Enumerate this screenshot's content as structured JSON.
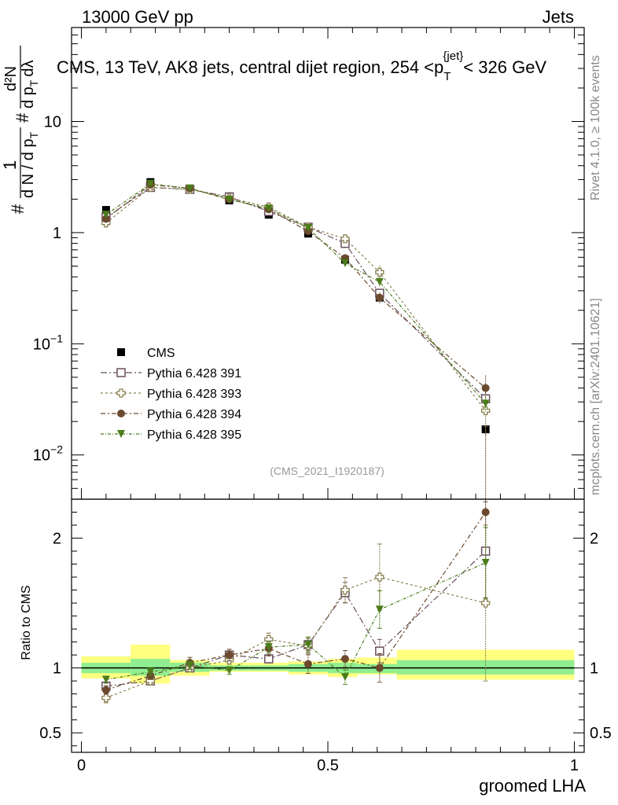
{
  "header": {
    "left": "13000 GeV pp",
    "right": "Jets"
  },
  "side_labels": {
    "rivet": "Rivet 4.1.0, ≥ 100k events",
    "mcplots": "mcplots.cern.ch [arXiv:2401.10621]"
  },
  "chart_data": {
    "type": "line",
    "title": "CMS, 13 TeV, AK8 jets, central dijet region, 254 <p_T^{jet}< 326 GeV",
    "title_parts": {
      "main": "CMS, 13 TeV, AK8 jets, central dijet region, 254 <p",
      "sub": "T",
      "sup": "{jet}",
      "tail": "< 326 GeV"
    },
    "watermark": "(CMS_2021_I1920187)",
    "xlabel": "groomed LHA",
    "ylabel": "1/dN/dp_T  d²N/dp_T dλ",
    "ylabel_parts": {
      "num": "1",
      "den": "d N / d p",
      "denSub": "T",
      "right": "d²N",
      "rightDen": "d p",
      "rightDenSub": "T",
      "rightLambda": "dλ",
      "hash": "#"
    },
    "ratio_ylabel": "Ratio to CMS",
    "xlim": [
      -0.02,
      1.02
    ],
    "ylim": [
      0.004,
      70
    ],
    "yscale": "log",
    "ratio_ylim": [
      0.35,
      2.3
    ],
    "x_ticks": [
      {
        "v": 0,
        "label": "0"
      },
      {
        "v": 0.5,
        "label": "0.5"
      },
      {
        "v": 1,
        "label": "1"
      }
    ],
    "y_ticks": [
      {
        "v": 0.01,
        "base": "10",
        "exp": "−2"
      },
      {
        "v": 0.1,
        "base": "10",
        "exp": "−1"
      },
      {
        "v": 1,
        "base": "1",
        "exp": ""
      },
      {
        "v": 10,
        "base": "10",
        "exp": ""
      }
    ],
    "ratio_ticks": [
      {
        "v": 0.5,
        "label": "0.5"
      },
      {
        "v": 1,
        "label": "1"
      },
      {
        "v": 2,
        "label": "2"
      }
    ],
    "bins": [
      {
        "lo": 0.0,
        "hi": 0.1,
        "x": 0.05
      },
      {
        "lo": 0.1,
        "hi": 0.18,
        "x": 0.14
      },
      {
        "lo": 0.18,
        "hi": 0.26,
        "x": 0.22
      },
      {
        "lo": 0.26,
        "hi": 0.34,
        "x": 0.3
      },
      {
        "lo": 0.34,
        "hi": 0.42,
        "x": 0.38
      },
      {
        "lo": 0.42,
        "hi": 0.5,
        "x": 0.46
      },
      {
        "lo": 0.5,
        "hi": 0.56,
        "x": 0.535
      },
      {
        "lo": 0.56,
        "hi": 0.64,
        "x": 0.605
      },
      {
        "lo": 0.64,
        "hi": 1.0,
        "x": 0.82
      }
    ],
    "data_band_ratio": {
      "stat_lo": [
        0.96,
        0.94,
        0.97,
        0.98,
        0.98,
        0.97,
        0.96,
        0.96,
        0.95
      ],
      "stat_hi": [
        1.04,
        1.07,
        1.04,
        1.02,
        1.02,
        1.03,
        1.04,
        1.03,
        1.06
      ],
      "tot_lo": [
        0.92,
        0.88,
        0.94,
        0.97,
        0.97,
        0.95,
        0.93,
        0.95,
        0.91
      ],
      "tot_hi": [
        1.09,
        1.18,
        1.06,
        1.04,
        1.04,
        1.05,
        1.07,
        1.08,
        1.14
      ]
    },
    "series": [
      {
        "name": "CMS",
        "color": "#000000",
        "marker": "filled-square",
        "values": [
          1.6,
          2.85,
          2.45,
          1.95,
          1.45,
          0.98,
          0.57,
          0.26,
          0.017
        ],
        "ratio": [
          1,
          1,
          1,
          1,
          1,
          1,
          1,
          1,
          1
        ]
      },
      {
        "name": "Pythia 6.428 391",
        "color": "#6b4f5e",
        "marker": "open-square",
        "dash": "8,3,2,3",
        "values": [
          1.37,
          2.55,
          2.45,
          2.1,
          1.55,
          1.12,
          0.8,
          0.285,
          0.032
        ],
        "ratio": [
          0.86,
          0.9,
          1.0,
          1.1,
          1.07,
          1.18,
          1.58,
          1.13,
          1.9
        ],
        "err": [
          0.03,
          0.02,
          0.02,
          0.02,
          0.03,
          0.04,
          0.05,
          0.08,
          0.2
        ]
      },
      {
        "name": "Pythia 6.428 393",
        "color": "#8a8050",
        "marker": "open-cross",
        "dash": "3,3",
        "values": [
          1.22,
          2.55,
          2.45,
          2.05,
          1.7,
          1.12,
          0.88,
          0.44,
          0.025
        ],
        "ratio": [
          0.77,
          0.9,
          1.0,
          1.06,
          1.22,
          1.17,
          1.6,
          1.7,
          1.5
        ],
        "err": [
          0.05,
          0.03,
          0.03,
          0.03,
          0.04,
          0.05,
          0.06,
          0.15,
          0.4
        ]
      },
      {
        "name": "Pythia 6.428 394",
        "color": "#6b4a2e",
        "marker": "filled-circle",
        "dash": "6,3,2,3",
        "values": [
          1.33,
          2.7,
          2.5,
          2.0,
          1.62,
          1.03,
          0.59,
          0.26,
          0.04
        ],
        "ratio": [
          0.83,
          0.94,
          1.04,
          1.1,
          1.15,
          1.03,
          1.07,
          1.0,
          2.2
        ],
        "err": [
          0.04,
          0.03,
          0.04,
          0.04,
          0.05,
          0.07,
          0.06,
          0.11,
          0.3
        ]
      },
      {
        "name": "Pythia 6.428 395",
        "color": "#4c7c1a",
        "marker": "filled-triangle-down",
        "dash": "4,2,1,2",
        "values": [
          1.45,
          2.75,
          2.5,
          1.98,
          1.65,
          1.1,
          0.53,
          0.36,
          0.029
        ],
        "ratio": [
          0.91,
          0.97,
          1.02,
          0.98,
          1.16,
          1.18,
          0.93,
          1.45,
          1.81
        ],
        "err": [
          0.03,
          0.03,
          0.03,
          0.03,
          0.04,
          0.05,
          0.06,
          0.1,
          0.15
        ]
      }
    ],
    "legend_position": "lower-left"
  }
}
